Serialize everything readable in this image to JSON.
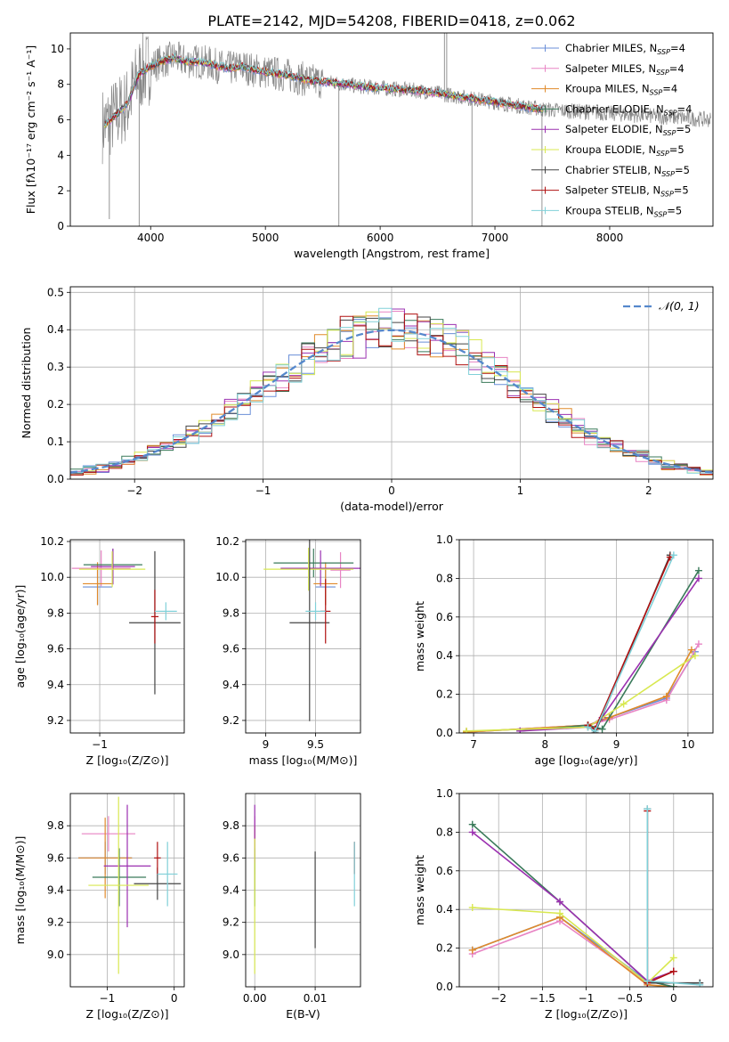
{
  "figure": {
    "title": "PLATE=2142, MJD=54208, FIBERID=0418, z=0.062"
  },
  "models": [
    {
      "name": "Chabrier MILES, N",
      "sub": "SSP",
      "suffix": "=4",
      "color": "#6a8fd8"
    },
    {
      "name": "Salpeter MILES, N",
      "sub": "SSP",
      "suffix": "=4",
      "color": "#e884c4"
    },
    {
      "name": "Kroupa MILES, N",
      "sub": "SSP",
      "suffix": "=4",
      "color": "#e08a2a"
    },
    {
      "name": "Chabrier ELODIE, N",
      "sub": "SSP",
      "suffix": "=4",
      "color": "#3a7a5a"
    },
    {
      "name": "Salpeter ELODIE, N",
      "sub": "SSP",
      "suffix": "=5",
      "color": "#9b30b0"
    },
    {
      "name": "Kroupa ELODIE, N",
      "sub": "SSP",
      "suffix": "=5",
      "color": "#d8e850"
    },
    {
      "name": "Chabrier STELIB, N",
      "sub": "SSP",
      "suffix": "=5",
      "color": "#444444"
    },
    {
      "name": "Salpeter STELIB, N",
      "sub": "SSP",
      "suffix": "=5",
      "color": "#b01010"
    },
    {
      "name": "Kroupa STELIB, N",
      "sub": "SSP",
      "suffix": "=5",
      "color": "#80d0d8"
    }
  ],
  "chart_data": [
    {
      "id": "spectrum",
      "type": "line",
      "xlabel": "wavelength [Angstrom, rest frame]",
      "ylabel": "Flux [fλ10⁻¹⁷ erg cm⁻² s⁻¹ A⁻¹]",
      "xlim": [
        3300,
        8900
      ],
      "ylim": [
        0,
        10.9
      ],
      "xticks": [
        4000,
        5000,
        6000,
        7000,
        8000
      ],
      "yticks": [
        0,
        2,
        4,
        6,
        8,
        10
      ],
      "grid": false,
      "legend": "top-right",
      "data_color": "#888888",
      "continuum_x": [
        3600,
        3700,
        3800,
        3900,
        4000,
        4100,
        4200,
        4300,
        4400,
        4500,
        4600,
        4700,
        4800,
        4900,
        5000,
        5200,
        5400,
        5600,
        5800,
        6000,
        6200,
        6400,
        6600,
        6800,
        7000,
        7200,
        7400
      ],
      "continuum_y": [
        5.7,
        6.3,
        6.9,
        8.6,
        9.0,
        9.3,
        9.5,
        9.3,
        9.3,
        9.2,
        9.0,
        8.9,
        9.0,
        8.8,
        8.7,
        8.5,
        8.2,
        8.1,
        7.9,
        7.8,
        7.7,
        7.6,
        7.4,
        7.2,
        7.0,
        6.8,
        6.6
      ]
    },
    {
      "id": "residuals",
      "type": "histogram",
      "xlabel": "(data-model)/error",
      "ylabel": "Normed distribution",
      "xlim": [
        -2.5,
        2.5
      ],
      "ylim": [
        0,
        0.515
      ],
      "xticks": [
        -2,
        -1,
        0,
        1,
        2
      ],
      "yticks": [
        0.0,
        0.1,
        0.2,
        0.3,
        0.4,
        0.5
      ],
      "grid": true,
      "legend": "top-right",
      "reference_label": "𝒩(0, 1)",
      "reference_color": "#5588cc",
      "bin_width": 0.1,
      "bin_start": -2.5
    },
    {
      "id": "age-vs-Z",
      "type": "errorbar",
      "xlabel": "Z [log₁₀(Z/Z⊙)]",
      "ylabel": "age  [log₁₀(age/yr)]",
      "xlim": [
        -1.4,
        0.15
      ],
      "ylim": [
        9.13,
        10.21
      ],
      "xticks": [
        -1
      ],
      "yticks": [
        9.2,
        9.4,
        9.6,
        9.8,
        10.0,
        10.2
      ],
      "grid": true,
      "points": [
        {
          "x": -1.03,
          "y": 9.946,
          "xerr": 0.2,
          "yerr": 0.1
        },
        {
          "x": -0.98,
          "y": 10.05,
          "xerr": 0.4,
          "yerr": 0.1
        },
        {
          "x": -1.03,
          "y": 9.964,
          "xerr": 0.2,
          "yerr": 0.12
        },
        {
          "x": -0.82,
          "y": 10.07,
          "xerr": 0.4,
          "yerr": 0.09
        },
        {
          "x": -0.82,
          "y": 10.06,
          "xerr": 0.3,
          "yerr": 0.1
        },
        {
          "x": -0.83,
          "y": 10.045,
          "xerr": 0.45,
          "yerr": 0.1
        },
        {
          "x": -0.25,
          "y": 9.746,
          "xerr": 0.35,
          "yerr": 0.4
        },
        {
          "x": -0.25,
          "y": 9.78,
          "xerr": 0.05,
          "yerr": 0.15
        },
        {
          "x": -0.1,
          "y": 9.81,
          "xerr": 0.15,
          "yerr": 0.05
        }
      ]
    },
    {
      "id": "age-vs-mass",
      "type": "errorbar",
      "xlabel": "mass [log₁₀(M/M⊙)]",
      "ylabel": "",
      "xlim": [
        8.8,
        9.95
      ],
      "ylim": [
        9.13,
        10.21
      ],
      "xticks": [
        9.0,
        9.5
      ],
      "yticks": [
        9.2,
        9.4,
        9.6,
        9.8,
        10.0,
        10.2
      ],
      "grid": true,
      "points": [
        {
          "x": 9.6,
          "y": 9.946,
          "xerr": 0.1,
          "yerr": 0.1
        },
        {
          "x": 9.75,
          "y": 10.04,
          "xerr": 0.1,
          "yerr": 0.1
        },
        {
          "x": 9.6,
          "y": 9.964,
          "xerr": 0.12,
          "yerr": 0.12
        },
        {
          "x": 9.48,
          "y": 10.08,
          "xerr": 0.4,
          "yerr": 0.08
        },
        {
          "x": 9.55,
          "y": 10.05,
          "xerr": 0.4,
          "yerr": 0.1
        },
        {
          "x": 9.43,
          "y": 10.045,
          "xerr": 0.45,
          "yerr": 0.12
        },
        {
          "x": 9.44,
          "y": 9.746,
          "xerr": 0.2,
          "yerr": 0.55
        },
        {
          "x": 9.6,
          "y": 9.81,
          "xerr": 0.05,
          "yerr": 0.18
        },
        {
          "x": 9.5,
          "y": 9.81,
          "xerr": 0.1,
          "yerr": 0.05
        }
      ]
    },
    {
      "id": "weight-vs-age",
      "type": "line",
      "xlabel": "age  [log₁₀(age/yr)]",
      "ylabel": "mass weight",
      "xlim": [
        6.8,
        10.35
      ],
      "ylim": [
        0,
        1.0
      ],
      "xticks": [
        7,
        8,
        9,
        10
      ],
      "yticks": [
        0.0,
        0.2,
        0.4,
        0.6,
        0.8,
        1.0
      ],
      "grid": true,
      "series": [
        {
          "x": [
            6.9,
            8.6,
            8.9,
            9.7,
            10.1
          ],
          "y": [
            0.005,
            0.04,
            0.08,
            0.18,
            0.42
          ]
        },
        {
          "x": [
            6.9,
            8.6,
            8.9,
            9.7,
            10.15
          ],
          "y": [
            0.005,
            0.04,
            0.07,
            0.17,
            0.46
          ]
        },
        {
          "x": [
            6.9,
            8.6,
            8.9,
            9.7,
            10.05
          ],
          "y": [
            0.005,
            0.04,
            0.08,
            0.19,
            0.43
          ]
        },
        {
          "x": [
            7.65,
            8.6,
            8.8,
            10.15
          ],
          "y": [
            0.01,
            0.04,
            0.02,
            0.84
          ]
        },
        {
          "x": [
            7.65,
            8.6,
            8.8,
            10.15
          ],
          "y": [
            0.01,
            0.03,
            0.08,
            0.8
          ]
        },
        {
          "x": [
            6.9,
            8.6,
            9.1,
            10.1
          ],
          "y": [
            0.01,
            0.03,
            0.15,
            0.4
          ]
        },
        {
          "x": [
            8.6,
            8.7,
            9.75
          ],
          "y": [
            0.04,
            0.0,
            0.92
          ]
        },
        {
          "x": [
            8.6,
            8.7,
            9.75
          ],
          "y": [
            0.04,
            0.02,
            0.91
          ]
        },
        {
          "x": [
            8.6,
            8.7,
            9.8
          ],
          "y": [
            0.03,
            0.01,
            0.92
          ]
        }
      ]
    },
    {
      "id": "mass-vs-Z",
      "type": "errorbar",
      "xlabel": "Z [log₁₀(Z/Z⊙)]",
      "ylabel": "mass [log₁₀(M/M⊙)]",
      "xlim": [
        -1.55,
        0.15
      ],
      "ylim": [
        8.8,
        10.0
      ],
      "xticks": [
        -1,
        0
      ],
      "yticks": [
        9.0,
        9.2,
        9.4,
        9.6,
        9.8
      ],
      "grid": true,
      "points": [
        {
          "x": -1.03,
          "y": 9.6,
          "xerr": 0.4,
          "yerr": 0.1
        },
        {
          "x": -0.98,
          "y": 9.75,
          "xerr": 0.4,
          "yerr": 0.11
        },
        {
          "x": -1.03,
          "y": 9.6,
          "xerr": 0.4,
          "yerr": 0.25
        },
        {
          "x": -0.82,
          "y": 9.48,
          "xerr": 0.4,
          "yerr": 0.18
        },
        {
          "x": -0.7,
          "y": 9.55,
          "xerr": 0.35,
          "yerr": 0.38
        },
        {
          "x": -0.83,
          "y": 9.43,
          "xerr": 0.45,
          "yerr": 0.55
        },
        {
          "x": -0.25,
          "y": 9.44,
          "xerr": 0.35,
          "yerr": 0.1
        },
        {
          "x": -0.25,
          "y": 9.6,
          "xerr": 0.05,
          "yerr": 0.1
        },
        {
          "x": -0.1,
          "y": 9.5,
          "xerr": 0.15,
          "yerr": 0.2
        }
      ]
    },
    {
      "id": "mass-vs-ebv",
      "type": "errorbar",
      "xlabel": "E(B-V)",
      "ylabel": "",
      "xlim": [
        -0.0015,
        0.0175
      ],
      "ylim": [
        8.8,
        10.0
      ],
      "xticks": [
        0.0,
        0.01
      ],
      "xticklabels": [
        "0.00",
        "0.01"
      ],
      "yticks": [
        9.0,
        9.2,
        9.4,
        9.6,
        9.8
      ],
      "grid": true,
      "points": [
        {
          "x": 0.0,
          "y": 9.6,
          "xerr": 0,
          "yerr": 0.1
        },
        {
          "x": 0.0,
          "y": 9.75,
          "xerr": 0,
          "yerr": 0.11
        },
        {
          "x": 0.0,
          "y": 9.6,
          "xerr": 0,
          "yerr": 0.2
        },
        {
          "x": 0.0,
          "y": 9.48,
          "xerr": 0,
          "yerr": 0.18
        },
        {
          "x": 0.0,
          "y": 9.75,
          "xerr": 0,
          "yerr": 0.18
        },
        {
          "x": 0.0,
          "y": 9.3,
          "xerr": 0,
          "yerr": 0.42
        },
        {
          "x": 0.01,
          "y": 9.34,
          "xerr": 0,
          "yerr": 0.3
        },
        {
          "x": 0.0165,
          "y": 9.6,
          "xerr": 0,
          "yerr": 0.1
        },
        {
          "x": 0.0165,
          "y": 9.5,
          "xerr": 0,
          "yerr": 0.2
        }
      ]
    },
    {
      "id": "weight-vs-Z",
      "type": "line",
      "xlabel": "Z [log₁₀(Z/Z⊙)]",
      "ylabel": "mass weight",
      "xlim": [
        -2.45,
        0.45
      ],
      "ylim": [
        0,
        1.0
      ],
      "xticks": [
        -2.0,
        -1.5,
        -1.0,
        -0.5,
        0.0
      ],
      "yticks": [
        0.0,
        0.2,
        0.4,
        0.6,
        0.8,
        1.0
      ],
      "grid": true,
      "series": [
        {
          "x": [
            -2.3,
            -1.3,
            -0.3,
            0.0
          ],
          "y": [
            0.19,
            0.36,
            0.03,
            0.0
          ]
        },
        {
          "x": [
            -2.3,
            -1.3,
            -0.3,
            0.0
          ],
          "y": [
            0.17,
            0.34,
            0.02,
            0.08
          ]
        },
        {
          "x": [
            -2.3,
            -1.3,
            -0.3,
            0.0
          ],
          "y": [
            0.19,
            0.36,
            0.01,
            0.0
          ]
        },
        {
          "x": [
            -2.3,
            -1.3,
            -0.3,
            0.0
          ],
          "y": [
            0.84,
            0.44,
            0.03,
            0.0
          ]
        },
        {
          "x": [
            -2.3,
            -1.3,
            -0.3,
            0.0
          ],
          "y": [
            0.8,
            0.44,
            0.03,
            0.08
          ]
        },
        {
          "x": [
            -2.3,
            -1.3,
            -0.3,
            0.0
          ],
          "y": [
            0.41,
            0.38,
            0.02,
            0.15
          ]
        },
        {
          "x": [
            -0.3,
            -0.3,
            0.3
          ],
          "y": [
            0.92,
            0.02,
            0.02
          ]
        },
        {
          "x": [
            -0.3,
            -0.3,
            0.0
          ],
          "y": [
            0.91,
            0.02,
            0.08
          ]
        },
        {
          "x": [
            -0.3,
            -0.3,
            0.3
          ],
          "y": [
            0.92,
            0.03,
            0.01
          ]
        }
      ]
    }
  ]
}
